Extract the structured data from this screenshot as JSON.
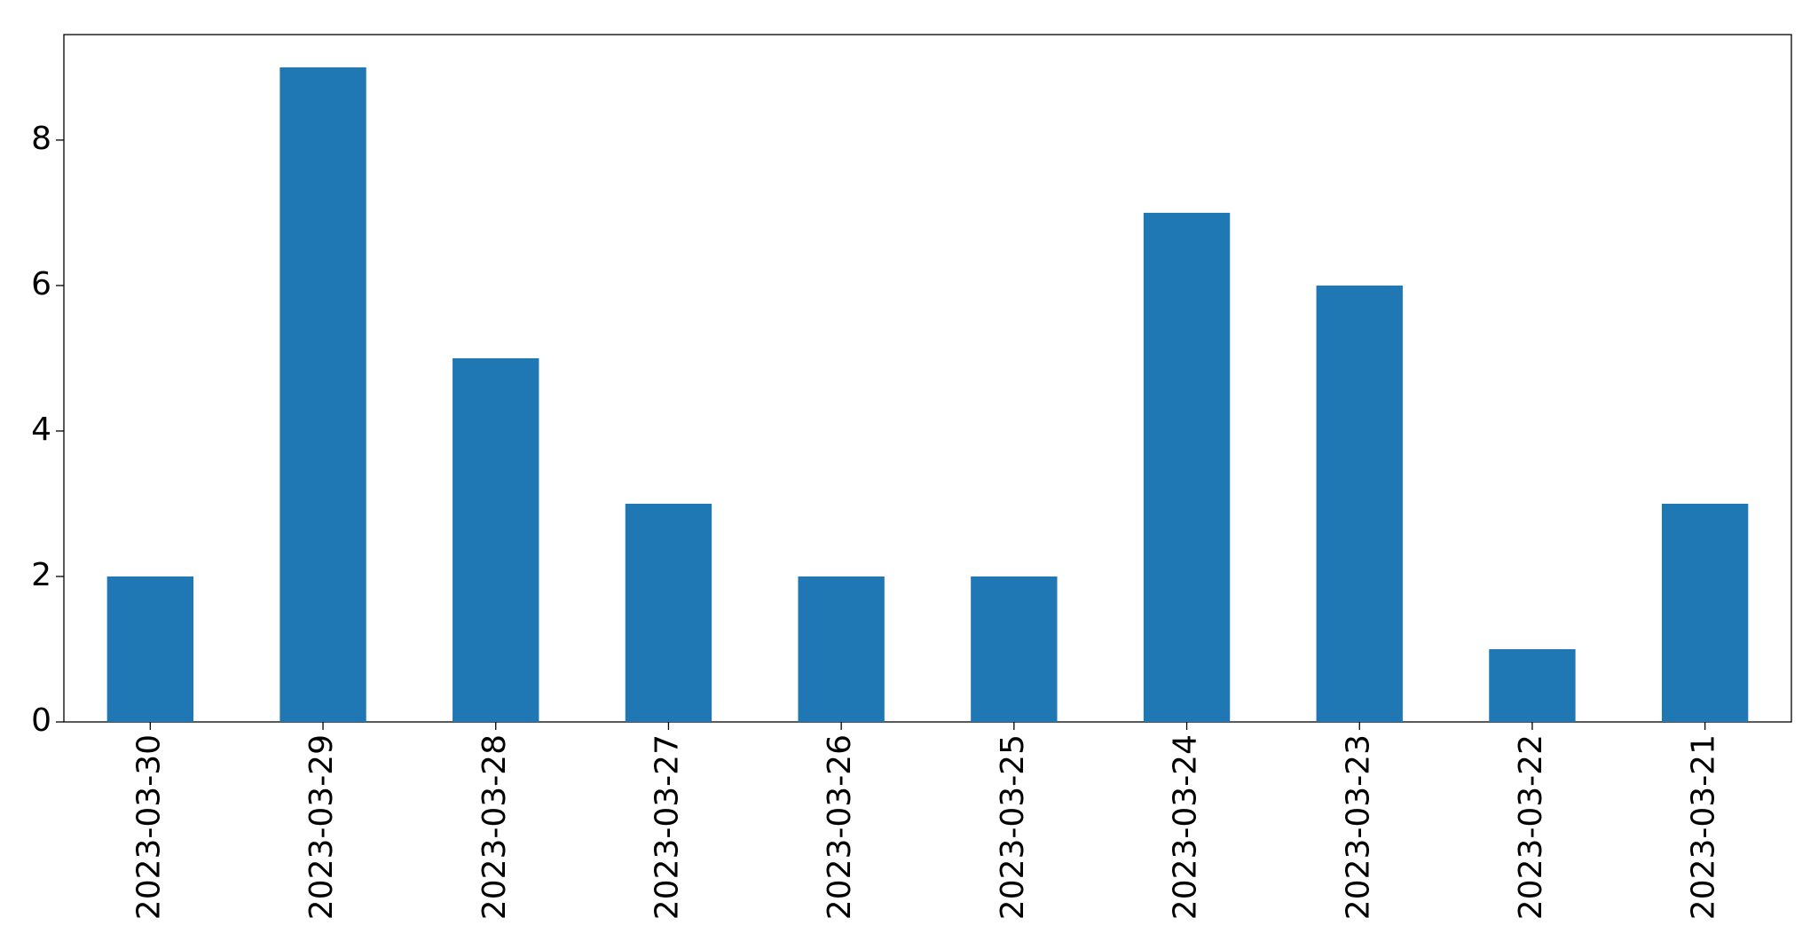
{
  "chart_data": {
    "type": "bar",
    "categories": [
      "2023-03-30",
      "2023-03-29",
      "2023-03-28",
      "2023-03-27",
      "2023-03-26",
      "2023-03-25",
      "2023-03-24",
      "2023-03-23",
      "2023-03-22",
      "2023-03-21"
    ],
    "values": [
      2,
      9,
      5,
      3,
      2,
      2,
      7,
      6,
      1,
      3
    ],
    "color": "#1f77b4",
    "ylim": [
      0,
      9.45
    ],
    "yticks": [
      0,
      2,
      4,
      6,
      8
    ],
    "grid": false
  }
}
